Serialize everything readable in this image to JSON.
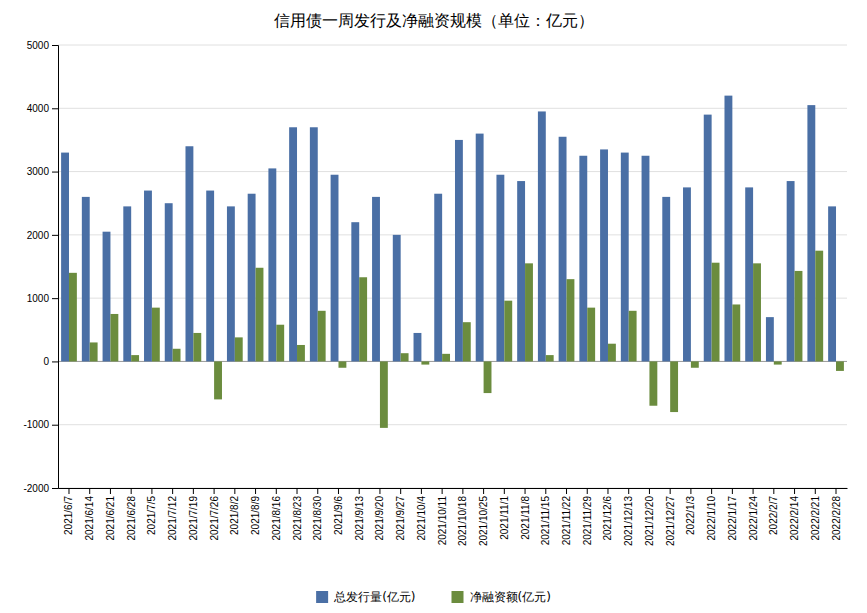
{
  "chart_data": {
    "type": "bar",
    "title": "信用债一周发行及净融资规模（单位：亿元）",
    "categories": [
      "2021/6/7",
      "2021/6/14",
      "2021/6/21",
      "2021/6/28",
      "2021/7/5",
      "2021/7/12",
      "2021/7/19",
      "2021/7/26",
      "2021/8/2",
      "2021/8/9",
      "2021/8/16",
      "2021/8/23",
      "2021/8/30",
      "2021/9/6",
      "2021/9/13",
      "2021/9/20",
      "2021/9/27",
      "2021/10/4",
      "2021/10/11",
      "2021/10/18",
      "2021/10/25",
      "2021/11/1",
      "2021/11/8",
      "2021/11/15",
      "2021/11/22",
      "2021/11/29",
      "2021/12/6",
      "2021/12/13",
      "2021/12/20",
      "2021/12/27",
      "2022/1/3",
      "2022/1/10",
      "2022/1/17",
      "2022/1/24",
      "2022/2/7",
      "2022/2/14",
      "2022/2/21",
      "2022/2/28"
    ],
    "series": [
      {
        "name": "总发行量(亿元)",
        "color": "#4a6fa5",
        "values": [
          3300,
          2600,
          2050,
          2450,
          2700,
          2500,
          3400,
          2700,
          2450,
          2650,
          3050,
          3700,
          3700,
          2950,
          2200,
          2600,
          2000,
          450,
          2650,
          3500,
          3600,
          2950,
          2850,
          3950,
          3550,
          3250,
          3350,
          3300,
          3250,
          2600,
          2750,
          3900,
          4200,
          2750,
          700,
          2850,
          4050,
          2450
        ]
      },
      {
        "name": "净融资额(亿元)",
        "color": "#6b8c3e",
        "values": [
          1400,
          300,
          750,
          100,
          850,
          200,
          450,
          -600,
          380,
          1480,
          580,
          260,
          800,
          -100,
          1330,
          -1050,
          130,
          -50,
          120,
          620,
          -500,
          960,
          1550,
          100,
          1300,
          850,
          280,
          800,
          -700,
          -800,
          -100,
          1560,
          900,
          1550,
          -50,
          1430,
          1750,
          -150
        ]
      }
    ],
    "ylim": [
      -2000,
      5000
    ],
    "yticks": [
      -2000,
      -1000,
      0,
      1000,
      2000,
      3000,
      4000,
      5000
    ],
    "grid": true,
    "legend": "bottom"
  }
}
